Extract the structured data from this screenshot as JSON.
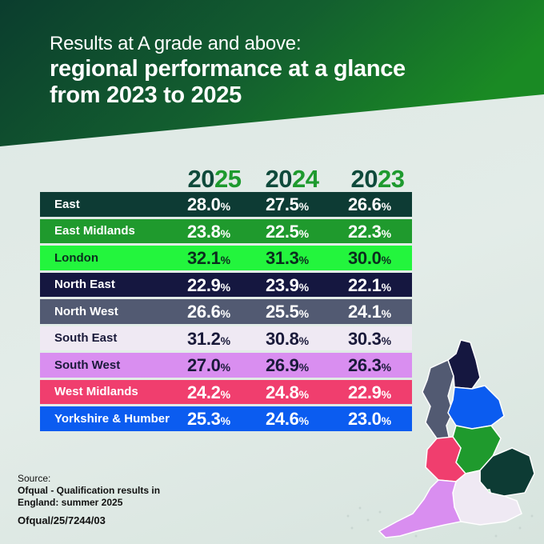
{
  "title": {
    "line1": "Results at A grade and above:",
    "line2": "regional performance at a glance",
    "line3": "from 2023 to 2025"
  },
  "years": [
    {
      "first": "20",
      "last": "25"
    },
    {
      "first": "20",
      "last": "24"
    },
    {
      "first": "20",
      "last": "23"
    }
  ],
  "percent_sign": "%",
  "colors": {
    "header_dark": "#0b3d2e",
    "header_green": "#1a8a24",
    "year_dark": "#0f4a3b",
    "year_green": "#1e9a2e"
  },
  "chart_data": {
    "type": "table",
    "title": "Results at A grade and above: regional performance at a glance from 2023 to 2025",
    "columns": [
      "2025",
      "2024",
      "2023"
    ],
    "unit": "%",
    "rows": [
      {
        "region": "East",
        "values": [
          "28.0",
          "27.5",
          "26.6"
        ],
        "color": "#0d3b34",
        "text": "#ffffff"
      },
      {
        "region": "East Midlands",
        "values": [
          "23.8",
          "22.5",
          "22.3"
        ],
        "color": "#1f9a2d",
        "text": "#ffffff"
      },
      {
        "region": "London",
        "values": [
          "32.1",
          "31.3",
          "30.0"
        ],
        "color": "#23f53d",
        "text": "#0b2d1e"
      },
      {
        "region": "North East",
        "values": [
          "22.9",
          "23.9",
          "22.1"
        ],
        "color": "#151740",
        "text": "#ffffff"
      },
      {
        "region": "North West",
        "values": [
          "26.6",
          "25.5",
          "24.1"
        ],
        "color": "#525a72",
        "text": "#ffffff"
      },
      {
        "region": "South East",
        "values": [
          "31.2",
          "30.8",
          "30.3"
        ],
        "color": "#efe9f3",
        "text": "#1a1a3a"
      },
      {
        "region": "South West",
        "values": [
          "27.0",
          "26.9",
          "26.3"
        ],
        "color": "#d98ef0",
        "text": "#1a1a3a"
      },
      {
        "region": "West Midlands",
        "values": [
          "24.2",
          "24.8",
          "22.9"
        ],
        "color": "#f03e6e",
        "text": "#ffffff"
      },
      {
        "region": "Yorkshire & Humber",
        "values": [
          "25.3",
          "24.6",
          "23.0"
        ],
        "color": "#0b5cf0",
        "text": "#ffffff"
      }
    ]
  },
  "source": {
    "label": "Source:",
    "line1": "Ofqual - Qualification results in",
    "line2": "England: summer 2025",
    "reference": "Ofqual/25/7244/03"
  },
  "map_regions": [
    {
      "name": "North East",
      "color": "#151740"
    },
    {
      "name": "North West",
      "color": "#525a72"
    },
    {
      "name": "Yorkshire & Humber",
      "color": "#0b5cf0"
    },
    {
      "name": "East Midlands",
      "color": "#1f9a2d"
    },
    {
      "name": "West Midlands",
      "color": "#f03e6e"
    },
    {
      "name": "East",
      "color": "#0d3b34"
    },
    {
      "name": "London",
      "color": "#23f53d"
    },
    {
      "name": "South East",
      "color": "#efe9f3"
    },
    {
      "name": "South West",
      "color": "#d98ef0"
    }
  ]
}
